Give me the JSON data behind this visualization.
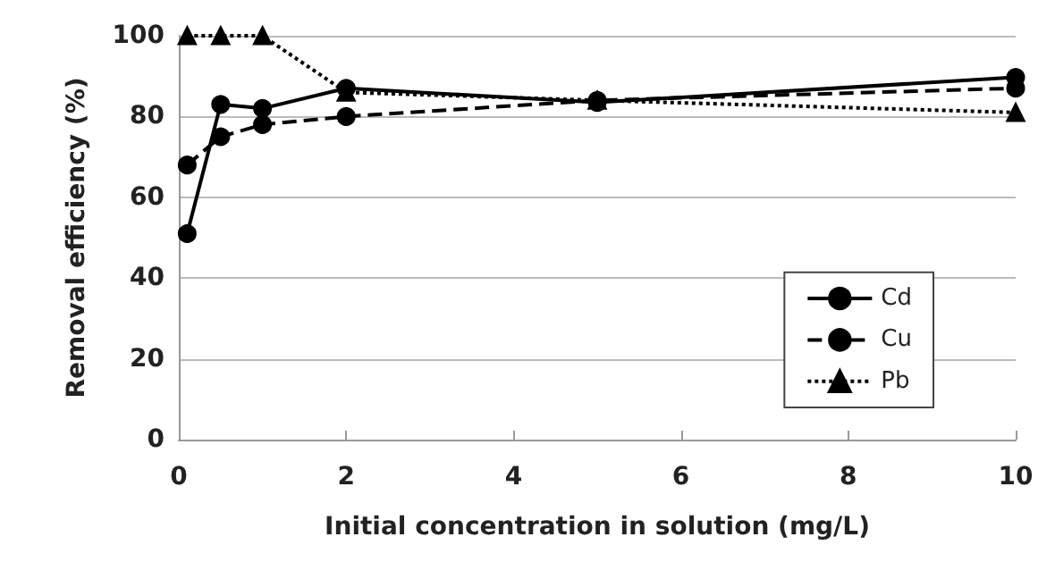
{
  "chart_data": {
    "type": "line",
    "xlabel": "Initial concentration in solution (mg/L)",
    "ylabel": "Removal efficiency (%)",
    "x": [
      0.1,
      0.5,
      1,
      2,
      5,
      10
    ],
    "series": [
      {
        "name": "Cd",
        "color": "#000000",
        "values": [
          51,
          83,
          82,
          87,
          83.5,
          89.7
        ],
        "marker": "circle",
        "line_style": "solid"
      },
      {
        "name": "Cu",
        "color": "#000000",
        "values": [
          68,
          75,
          78,
          80,
          84,
          87
        ],
        "marker": "circle",
        "line_style": "dashed"
      },
      {
        "name": "Pb",
        "color": "#000000",
        "values": [
          100,
          100,
          100,
          86,
          84,
          81
        ],
        "marker": "triangle",
        "line_style": "dotted"
      }
    ],
    "xlim": [
      0,
      10
    ],
    "xticks": [
      0,
      2,
      4,
      6,
      8,
      10
    ],
    "ylim": [
      0,
      100
    ],
    "yticks": [
      0,
      20,
      40,
      60,
      80,
      100
    ],
    "grid": "y",
    "legend": "bottom right"
  }
}
